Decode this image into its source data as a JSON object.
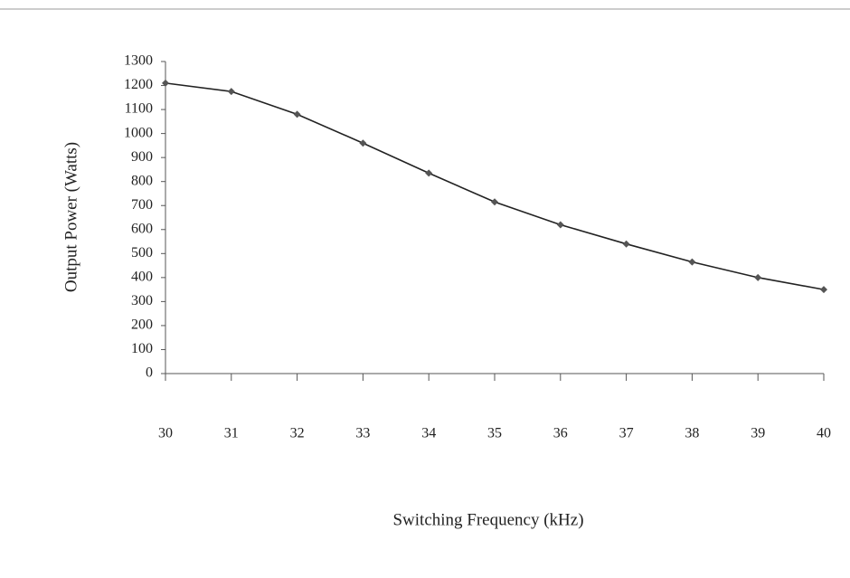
{
  "chart_data": {
    "type": "line",
    "x_label": "Switching Frequency (kHz)",
    "y_label": "Output Power (Watts)",
    "x": [
      30,
      31,
      32,
      33,
      34,
      35,
      36,
      37,
      38,
      39,
      40
    ],
    "series": [
      {
        "color": "#222222",
        "values": [
          1210,
          1175,
          1080,
          960,
          835,
          715,
          620,
          540,
          465,
          400,
          350
        ]
      }
    ],
    "xlim": [
      30,
      40
    ],
    "xticks": [
      30,
      31,
      32,
      33,
      34,
      35,
      36,
      37,
      38,
      39,
      40
    ],
    "ylim": [
      0,
      1300
    ],
    "yticks": [
      0,
      100,
      200,
      300,
      400,
      500,
      600,
      700,
      800,
      900,
      1000,
      1100,
      1200,
      1300
    ]
  }
}
